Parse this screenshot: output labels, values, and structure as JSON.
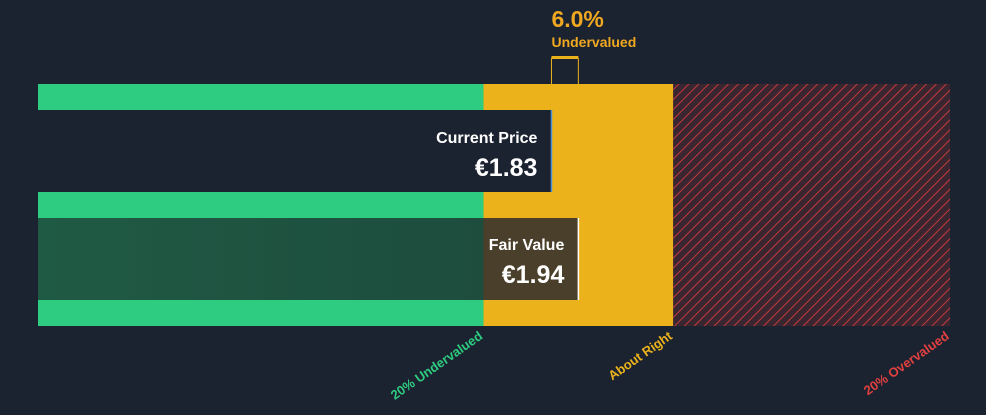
{
  "chart_data": {
    "type": "valuation",
    "discount": {
      "value": 6.0,
      "value_label": "6.0%",
      "label": "Undervalued"
    },
    "current_price": {
      "title": "Current Price",
      "value": 1.83,
      "value_label": "€1.83"
    },
    "fair_value": {
      "title": "Fair Value",
      "value": 1.94,
      "value_label": "€1.94"
    },
    "xlim": [
      -0.27,
      3.46
    ],
    "zones": [
      {
        "label": "20% Undervalued",
        "end": 1.552,
        "color": "#2ecc80"
      },
      {
        "label": "About Right",
        "end": 2.328,
        "color": "#ecb21c"
      },
      {
        "label": "20% Overvalued",
        "color": "#e0413f"
      }
    ]
  }
}
